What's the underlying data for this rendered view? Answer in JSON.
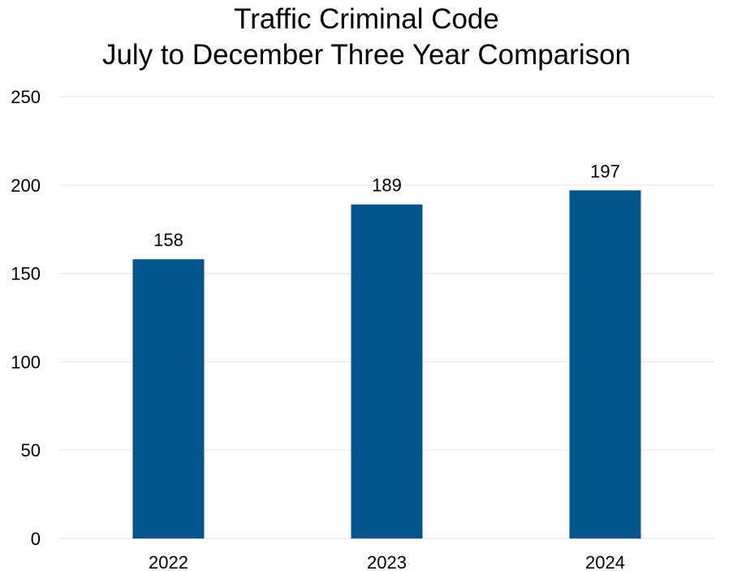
{
  "chart_data": {
    "type": "bar",
    "title": [
      "Traffic Criminal Code",
      "July to December Three Year Comparison"
    ],
    "xlabel": "",
    "ylabel": "",
    "categories": [
      "2022",
      "2023",
      "2024"
    ],
    "values": [
      158,
      189,
      197
    ],
    "data_labels": [
      "158",
      "189",
      "197"
    ],
    "ylim": [
      0,
      250
    ],
    "yticks": [
      0,
      50,
      100,
      150,
      200,
      250
    ],
    "grid": true,
    "legend": "none",
    "colors": {
      "bar": "#00558C",
      "grid": "#e8e8e8",
      "text": "#000000"
    }
  }
}
